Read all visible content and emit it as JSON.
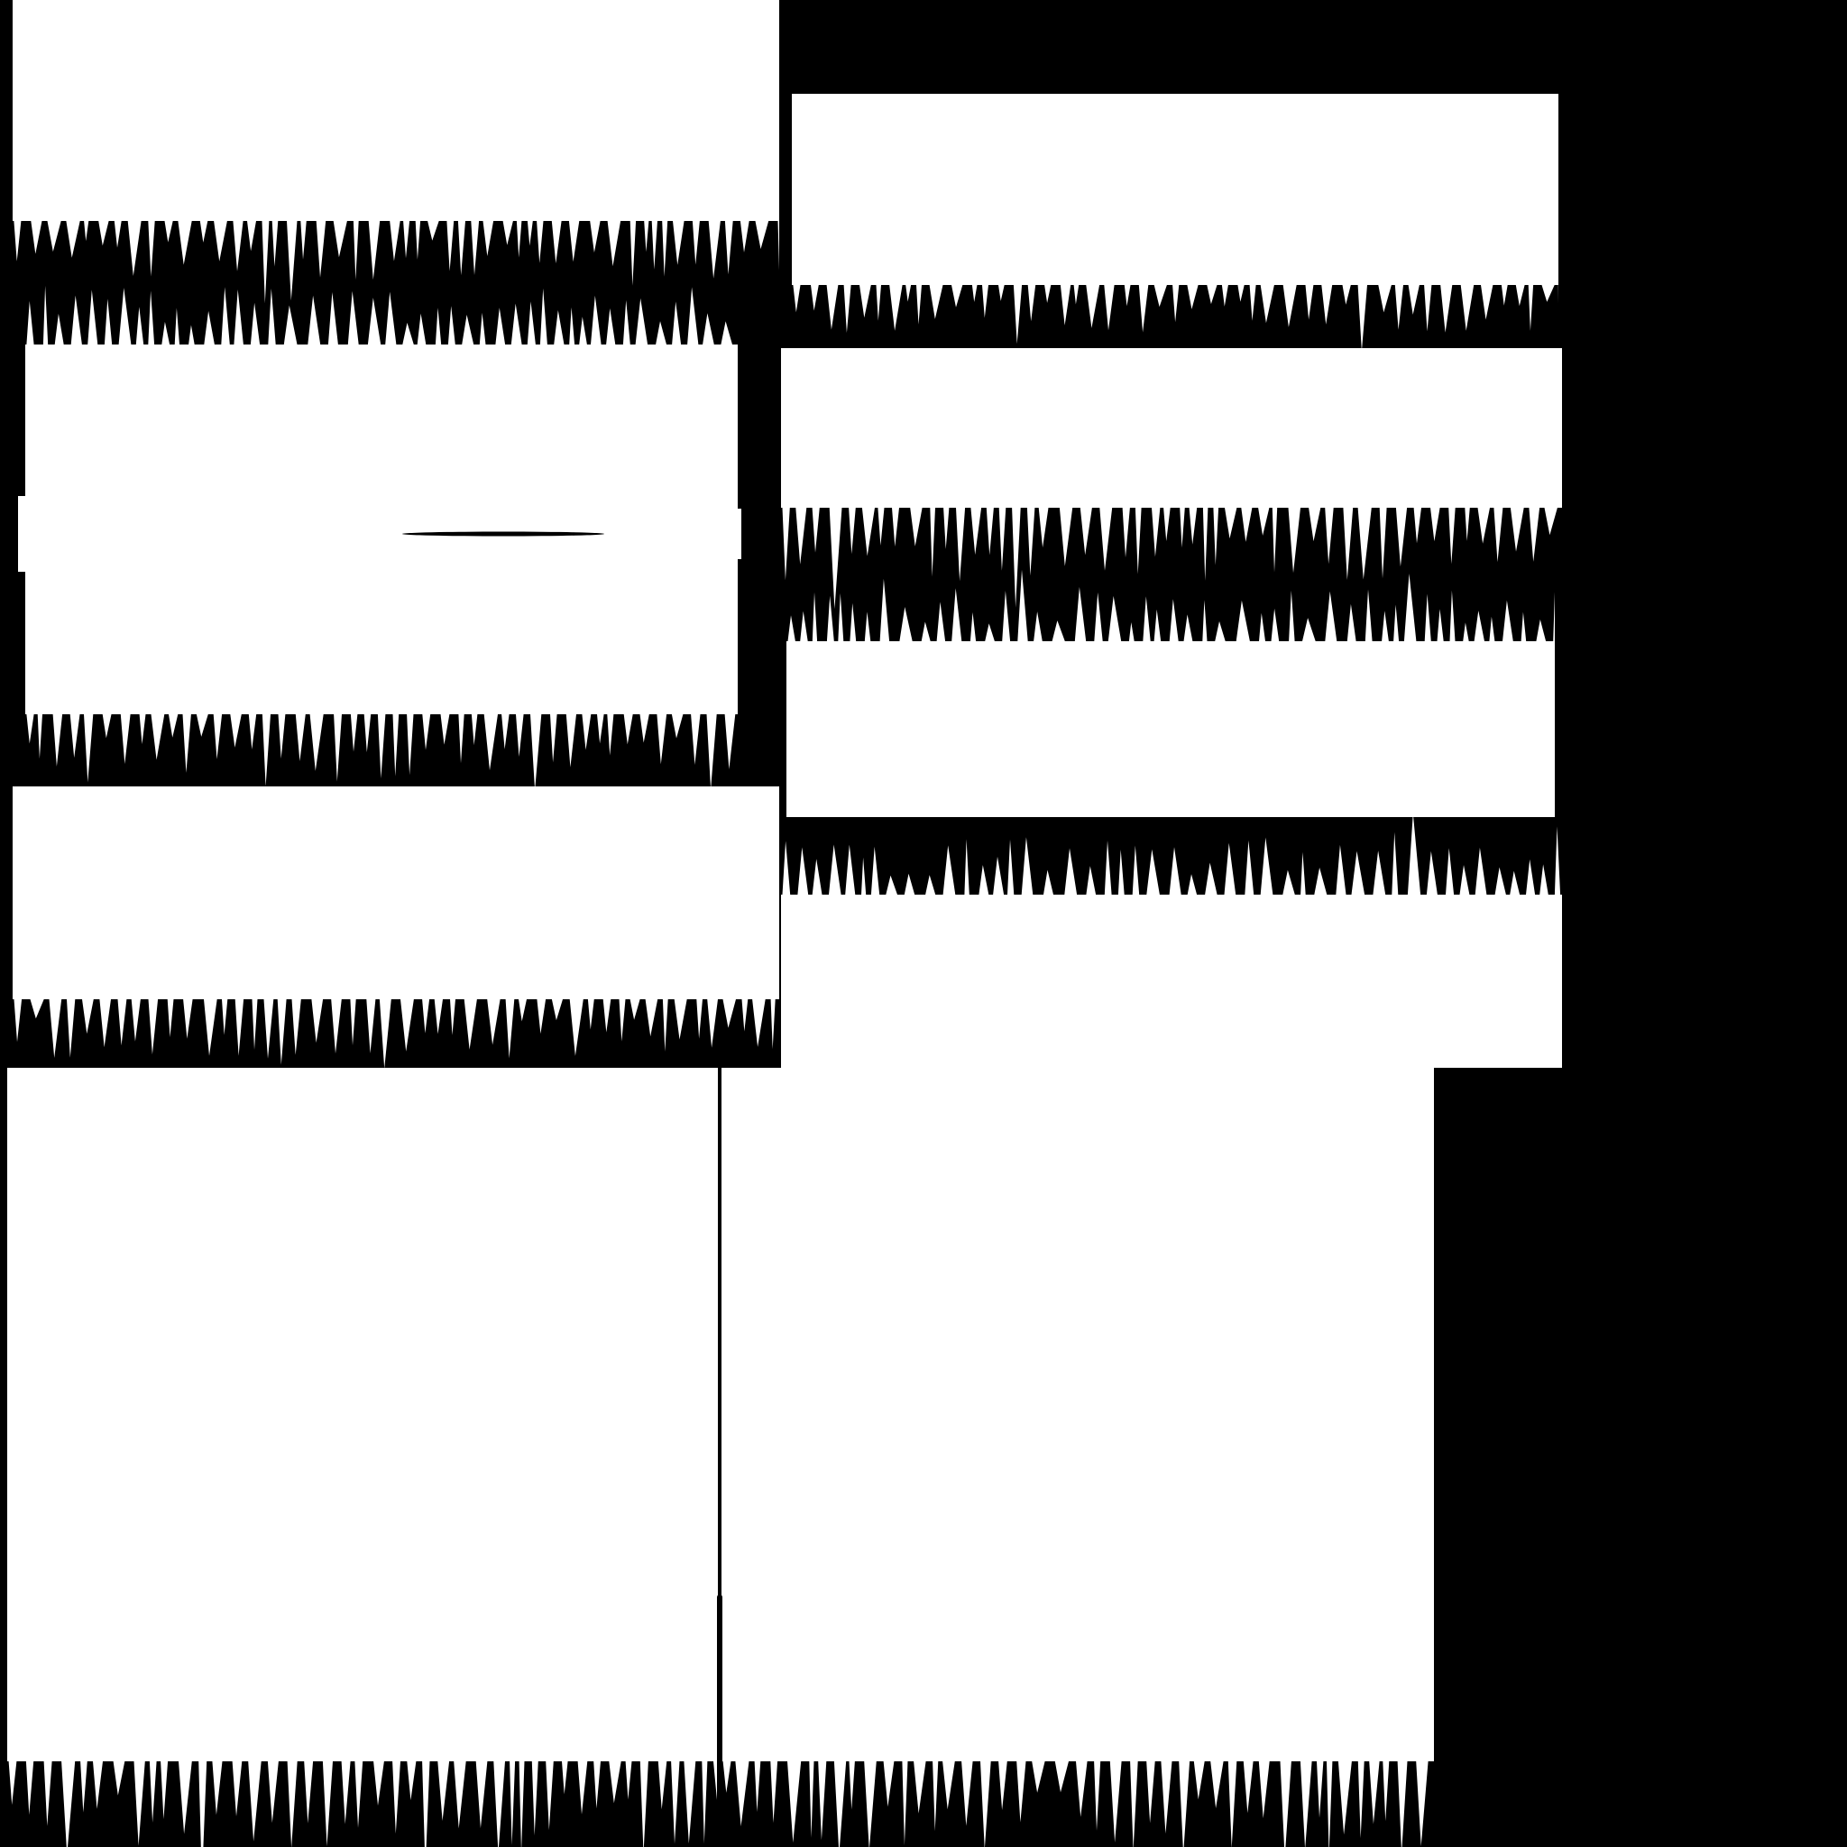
{
  "colors": {
    "background": "#000000",
    "panel": "#ffffff"
  },
  "panels": [
    {
      "name": "panel-grass-bottom-a"
    },
    {
      "name": "panel-grass-bottom-b"
    },
    {
      "name": "panel-grass-top-bottom-with-gap"
    },
    {
      "name": "panel-grass-bottom-c"
    },
    {
      "name": "panel-grass-top-d"
    },
    {
      "name": "panel-grass-bottom-e"
    },
    {
      "name": "panel-grass-top-f"
    },
    {
      "name": "panel-large-left-bottom-grass"
    },
    {
      "name": "panel-large-right-bottom-grass"
    }
  ]
}
